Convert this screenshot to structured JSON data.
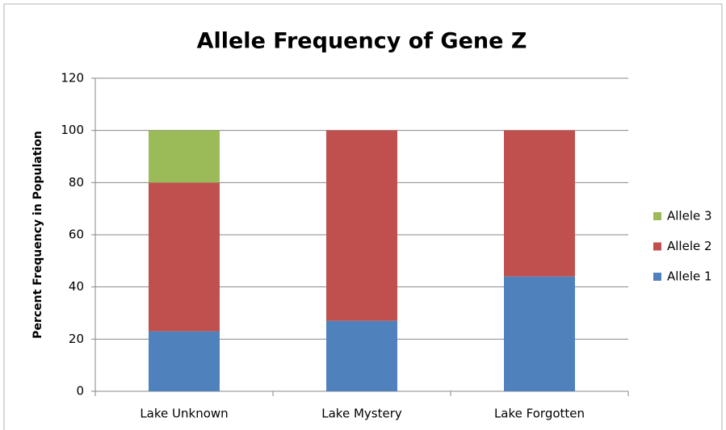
{
  "chart_data": {
    "type": "stacked_bar",
    "title": "Allele Frequency of Gene Z",
    "y_label": "Percent Frequency in Population",
    "categories": [
      "Lake Unknown",
      "Lake Mystery",
      "Lake Forgotten"
    ],
    "series": [
      {
        "name": "Allele 1",
        "color": "#4f81bd",
        "values": [
          23,
          27,
          44
        ]
      },
      {
        "name": "Allele 2",
        "color": "#c0504d",
        "values": [
          57,
          73,
          56
        ]
      },
      {
        "name": "Allele 3",
        "color": "#9bbb59",
        "values": [
          20,
          0,
          0
        ]
      }
    ],
    "ylim": [
      0,
      120
    ],
    "yticks": [
      0,
      20,
      40,
      60,
      80,
      100,
      120
    ],
    "grid": true,
    "legend": "right"
  }
}
